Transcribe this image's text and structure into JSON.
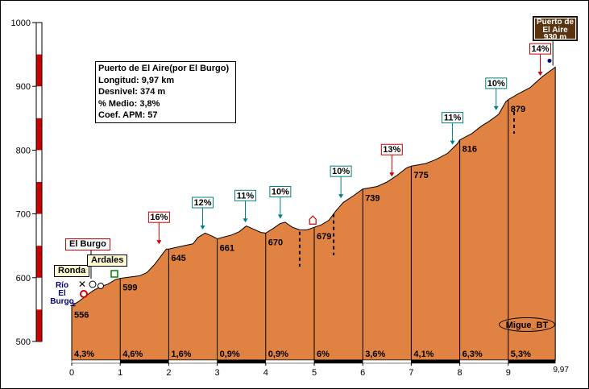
{
  "chart_data": {
    "type": "area",
    "title": "Puerto de El Aire(por El Burgo)",
    "stats": [
      "Longitud: 9,97 km",
      "Desnivel: 374 m",
      "% Medio: 3,8%",
      "Coef. APM: 57"
    ],
    "summit_label": [
      "Puerto de",
      "El Aire",
      "930 m"
    ],
    "xlim": [
      0,
      9.97
    ],
    "ylim": [
      500,
      1000
    ],
    "x_ticks": [
      "0",
      "1",
      "2",
      "3",
      "4",
      "5",
      "6",
      "7",
      "8",
      "9"
    ],
    "x_end_label": "9,97",
    "y_ticks": [
      "500",
      "600",
      "700",
      "800",
      "900",
      "1000"
    ],
    "km_elevations": [
      {
        "x": 0.0,
        "y": 556,
        "label": "556"
      },
      {
        "x": 1.0,
        "y": 599,
        "label": "599"
      },
      {
        "x": 2.0,
        "y": 645,
        "label": "645"
      },
      {
        "x": 3.0,
        "y": 661,
        "label": "661"
      },
      {
        "x": 4.0,
        "y": 670,
        "label": "670"
      },
      {
        "x": 5.0,
        "y": 679,
        "label": "679"
      },
      {
        "x": 6.0,
        "y": 739,
        "label": "739"
      },
      {
        "x": 7.0,
        "y": 775,
        "label": "775"
      },
      {
        "x": 8.0,
        "y": 816,
        "label": "816"
      },
      {
        "x": 9.0,
        "y": 879,
        "label": "879"
      },
      {
        "x": 9.97,
        "y": 930,
        "label": ""
      }
    ],
    "profile": [
      [
        0.0,
        556
      ],
      [
        0.15,
        563
      ],
      [
        0.3,
        572
      ],
      [
        0.45,
        580
      ],
      [
        0.6,
        586
      ],
      [
        0.75,
        590
      ],
      [
        0.9,
        597
      ],
      [
        1.0,
        599
      ],
      [
        1.2,
        601
      ],
      [
        1.4,
        603
      ],
      [
        1.55,
        608
      ],
      [
        1.7,
        620
      ],
      [
        1.85,
        635
      ],
      [
        1.95,
        645
      ],
      [
        2.0,
        645
      ],
      [
        2.3,
        650
      ],
      [
        2.5,
        653
      ],
      [
        2.6,
        663
      ],
      [
        2.75,
        670
      ],
      [
        2.9,
        665
      ],
      [
        3.0,
        661
      ],
      [
        3.3,
        667
      ],
      [
        3.45,
        672
      ],
      [
        3.6,
        681
      ],
      [
        3.75,
        676
      ],
      [
        3.9,
        671
      ],
      [
        4.0,
        670
      ],
      [
        4.15,
        677
      ],
      [
        4.3,
        685
      ],
      [
        4.4,
        687
      ],
      [
        4.55,
        679
      ],
      [
        4.7,
        675
      ],
      [
        4.85,
        675
      ],
      [
        5.0,
        679
      ],
      [
        5.15,
        683
      ],
      [
        5.3,
        690
      ],
      [
        5.45,
        705
      ],
      [
        5.6,
        718
      ],
      [
        5.8,
        728
      ],
      [
        6.0,
        739
      ],
      [
        6.3,
        743
      ],
      [
        6.5,
        750
      ],
      [
        6.7,
        760
      ],
      [
        6.9,
        772
      ],
      [
        7.0,
        775
      ],
      [
        7.3,
        779
      ],
      [
        7.5,
        785
      ],
      [
        7.75,
        795
      ],
      [
        7.95,
        810
      ],
      [
        8.0,
        816
      ],
      [
        8.25,
        826
      ],
      [
        8.45,
        838
      ],
      [
        8.6,
        845
      ],
      [
        8.8,
        856
      ],
      [
        8.95,
        876
      ],
      [
        9.0,
        879
      ],
      [
        9.2,
        888
      ],
      [
        9.45,
        898
      ],
      [
        9.7,
        915
      ],
      [
        9.97,
        930
      ]
    ],
    "segment_grades": [
      {
        "x": 0.5,
        "label": "4,3%"
      },
      {
        "x": 1.5,
        "label": "4,6%"
      },
      {
        "x": 2.5,
        "label": "1,6%"
      },
      {
        "x": 3.5,
        "label": "0,9%"
      },
      {
        "x": 4.5,
        "label": "0,9%"
      },
      {
        "x": 5.5,
        "label": "6%"
      },
      {
        "x": 6.5,
        "label": "3,6%"
      },
      {
        "x": 7.5,
        "label": "4,1%"
      },
      {
        "x": 8.5,
        "label": "6,3%"
      },
      {
        "x": 9.5,
        "label": "5,3%"
      }
    ],
    "max_grades": [
      {
        "x": 1.8,
        "y": 650,
        "label": "16%",
        "style": "red"
      },
      {
        "x": 2.7,
        "y": 673,
        "label": "12%",
        "style": "blue"
      },
      {
        "x": 3.58,
        "y": 684,
        "label": "11%",
        "style": "blue"
      },
      {
        "x": 4.3,
        "y": 690,
        "label": "10%",
        "style": "blue"
      },
      {
        "x": 5.55,
        "y": 722,
        "label": "10%",
        "style": "blue"
      },
      {
        "x": 6.6,
        "y": 756,
        "label": "13%",
        "style": "red"
      },
      {
        "x": 7.85,
        "y": 806,
        "label": "11%",
        "style": "blue"
      },
      {
        "x": 8.75,
        "y": 860,
        "label": "10%",
        "style": "blue"
      },
      {
        "x": 9.66,
        "y": 914,
        "label": "14%",
        "style": "red"
      }
    ],
    "places": {
      "el_burgo": "El Burgo",
      "ronda": "Ronda",
      "ardales": "Ardales",
      "rio": [
        "Río",
        "El Burgo"
      ]
    },
    "colors": {
      "fill": "#e08242",
      "stroke": "#000000",
      "red": "#cc0000",
      "blue": "#008080",
      "summit_bg": "#5a3310"
    },
    "author": "Migue_BT"
  }
}
